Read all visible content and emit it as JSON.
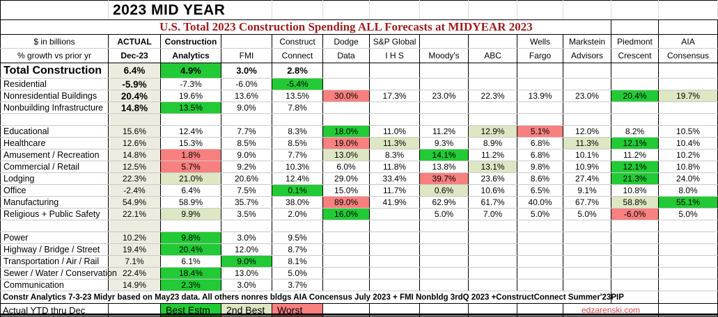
{
  "title": "2023 MID YEAR",
  "subtitle": "U.S. Total 2023 Construction Spending ALL Forecasts at MIDYEAR 2023",
  "corner": {
    "line1": "$ in billions",
    "line2": "% growth vs prior yr"
  },
  "colors": {
    "best": "#22cb35",
    "second": "#dde7c4",
    "worst": "#f8807f",
    "actual_column": "#eeece1",
    "subtitle_maroon": "#9c1c1c",
    "link_red": "#e04545"
  },
  "chart_data": {
    "type": "table",
    "title": "U.S. Total 2023 Construction Spending ALL Forecasts at MIDYEAR 2023",
    "units": "% growth vs prior yr, $ in billions",
    "highlight_meaning": {
      "best": "Best Estm",
      "second": "2nd Best",
      "worst": "Worst"
    },
    "columns": [
      {
        "line1": "ACTUAL",
        "line2": "Dec-23",
        "bold": true
      },
      {
        "line1": "Construction",
        "line2": "Analytics",
        "bold": true
      },
      {
        "line1": "",
        "line2": "FMI",
        "bold": false
      },
      {
        "line1": "Construct",
        "line2": "Connect",
        "bold": false
      },
      {
        "line1": "Dodge",
        "line2": "Data",
        "bold": false
      },
      {
        "line1": "S&P Global",
        "line2": "I H S",
        "bold": false
      },
      {
        "line1": "",
        "line2": "Moody's",
        "bold": false
      },
      {
        "line1": "",
        "line2": "ABC",
        "bold": false
      },
      {
        "line1": "Wells",
        "line2": "Fargo",
        "bold": false
      },
      {
        "line1": "Markstein",
        "line2": "Advisors",
        "bold": false
      },
      {
        "line1": "Piedmont",
        "line2": "Crescent",
        "bold": false
      },
      {
        "line1": "AIA",
        "line2": "Consensus",
        "bold": false
      }
    ],
    "rows": [
      {
        "label": "Total Construction",
        "em": true,
        "boldActual": true,
        "values": [
          "6.4%",
          "4.9%",
          "3.0%",
          "2.8%",
          "",
          "",
          "",
          "",
          "",
          "",
          "",
          ""
        ],
        "hl": [
          "",
          "best",
          "",
          "",
          "",
          "",
          "",
          "",
          "",
          "",
          "",
          ""
        ]
      },
      {
        "label": "Residential",
        "boldActual": true,
        "values": [
          "-5.9%",
          "-7.3%",
          "-6.0%",
          "-5.4%",
          "",
          "",
          "",
          "",
          "",
          "",
          "",
          ""
        ],
        "hl": [
          "",
          "",
          "",
          "best",
          "",
          "",
          "",
          "",
          "",
          "",
          "",
          ""
        ]
      },
      {
        "label": "Nonresidential Buildings",
        "boldActual": true,
        "values": [
          "20.4%",
          "19.6%",
          "13.6%",
          "13.5%",
          "30.0%",
          "17.3%",
          "23.0%",
          "22.3%",
          "13.9%",
          "23.0%",
          "20.4%",
          "19.7%"
        ],
        "hl": [
          "",
          "",
          "",
          "",
          "worst",
          "",
          "",
          "",
          "",
          "",
          "best",
          "second"
        ]
      },
      {
        "label": "Nonbuilding Infrastructure",
        "boldActual": true,
        "values": [
          "14.8%",
          "13.5%",
          "9.0%",
          "7.8%",
          "",
          "",
          "",
          "",
          "",
          "",
          "",
          ""
        ],
        "hl": [
          "",
          "best",
          "",
          "",
          "",
          "",
          "",
          "",
          "",
          "",
          "",
          ""
        ]
      },
      {
        "gap": true
      },
      {
        "label": "Educational",
        "values": [
          "15.6%",
          "12.4%",
          "7.7%",
          "8.3%",
          "18.0%",
          "11.0%",
          "11.2%",
          "12.9%",
          "5.1%",
          "12.0%",
          "8.2%",
          "10.5%"
        ],
        "hl": [
          "",
          "",
          "",
          "",
          "best",
          "",
          "",
          "second",
          "worst",
          "",
          "",
          ""
        ]
      },
      {
        "label": "Healthcare",
        "values": [
          "12.6%",
          "15.3%",
          "8.5%",
          "8.5%",
          "19.0%",
          "11.3%",
          "9.3%",
          "8.9%",
          "6.8%",
          "11.3%",
          "12.1%",
          "10.4%"
        ],
        "hl": [
          "",
          "",
          "",
          "",
          "worst",
          "second",
          "",
          "",
          "",
          "second",
          "best",
          ""
        ]
      },
      {
        "label": "Amusement / Recreation",
        "values": [
          "14.8%",
          "1.8%",
          "9.0%",
          "7.7%",
          "13.0%",
          "8.3%",
          "14.1%",
          "11.2%",
          "6.8%",
          "10.1%",
          "11.2%",
          "10.2%"
        ],
        "hl": [
          "",
          "worst",
          "",
          "",
          "second",
          "",
          "best",
          "",
          "",
          "",
          "",
          ""
        ]
      },
      {
        "label": "Commercial / Retail",
        "values": [
          "12.5%",
          "5.7%",
          "9.2%",
          "10.3%",
          "6.0%",
          "11.8%",
          "13.8%",
          "13.1%",
          "9.8%",
          "10.9%",
          "12.1%",
          "10.8%"
        ],
        "hl": [
          "",
          "worst",
          "",
          "",
          "",
          "",
          "",
          "second",
          "",
          "",
          "best",
          ""
        ]
      },
      {
        "label": "Lodging",
        "values": [
          "22.3%",
          "21.0%",
          "20.6%",
          "12.4%",
          "29.0%",
          "33.4%",
          "39.7%",
          "23.6%",
          "8.6%",
          "27.4%",
          "21.3%",
          "24.0%"
        ],
        "hl": [
          "",
          "second",
          "",
          "",
          "",
          "",
          "worst",
          "",
          "",
          "",
          "best",
          ""
        ]
      },
      {
        "label": "Office",
        "values": [
          "-2.4%",
          "6.4%",
          "7.5%",
          "0.1%",
          "15.0%",
          "11.7%",
          "0.6%",
          "10.6%",
          "6.5%",
          "9.1%",
          "10.8%",
          "8.0%"
        ],
        "hl": [
          "",
          "",
          "",
          "best",
          "",
          "",
          "second",
          "",
          "",
          "",
          "",
          ""
        ]
      },
      {
        "label": "Manufacturing",
        "values": [
          "54.9%",
          "58.9%",
          "35.7%",
          "38.0%",
          "89.0%",
          "41.9%",
          "62.9%",
          "61.7%",
          "40.0%",
          "67.7%",
          "58.8%",
          "55.1%"
        ],
        "hl": [
          "",
          "",
          "",
          "",
          "worst",
          "",
          "",
          "",
          "",
          "",
          "second",
          "best"
        ]
      },
      {
        "label": "Religious + Public Safety",
        "values": [
          "22.1%",
          "9.9%",
          "3.5%",
          "2.0%",
          "16.0%",
          "",
          "5.0%",
          "7.0%",
          "5.0%",
          "5.0%",
          "-6.0%",
          "5.0%"
        ],
        "hl": [
          "",
          "second",
          "",
          "",
          "best",
          "",
          "",
          "",
          "",
          "",
          "worst",
          ""
        ]
      },
      {
        "gap": true
      },
      {
        "label": "Power",
        "values": [
          "10.2%",
          "9.8%",
          "3.0%",
          "9.5%",
          "",
          "",
          "",
          "",
          "",
          "",
          "",
          ""
        ],
        "hl": [
          "",
          "best",
          "",
          "",
          "",
          "",
          "",
          "",
          "",
          "",
          "",
          ""
        ]
      },
      {
        "label": "Highway / Bridge / Street",
        "values": [
          "19.4%",
          "20.4%",
          "12.0%",
          "8.7%",
          "",
          "",
          "",
          "",
          "",
          "",
          "",
          ""
        ],
        "hl": [
          "",
          "best",
          "",
          "",
          "",
          "",
          "",
          "",
          "",
          "",
          "",
          ""
        ]
      },
      {
        "label": "Transportation / Air / Rail",
        "values": [
          "7.1%",
          "6.1%",
          "9.0%",
          "8.1%",
          "",
          "",
          "",
          "",
          "",
          "",
          "",
          ""
        ],
        "hl": [
          "",
          "",
          "best",
          "",
          "",
          "",
          "",
          "",
          "",
          "",
          "",
          ""
        ]
      },
      {
        "label": "Sewer / Water / Conservation",
        "values": [
          "22.4%",
          "18.4%",
          "13.0%",
          "5.0%",
          "",
          "",
          "",
          "",
          "",
          "",
          "",
          ""
        ],
        "hl": [
          "",
          "best",
          "",
          "",
          "",
          "",
          "",
          "",
          "",
          "",
          "",
          ""
        ]
      },
      {
        "label": "Communication",
        "values": [
          "14.9%",
          "2.3%",
          "3.0%",
          "3.7%",
          "",
          "",
          "",
          "",
          "",
          "",
          "",
          ""
        ],
        "hl": [
          "",
          "best",
          "",
          "",
          "",
          "",
          "",
          "",
          "",
          "",
          "",
          ""
        ]
      }
    ]
  },
  "footer": {
    "note": "Constr Analytics 7-3-23 Midyr based on May23 data. All others nonres bldgs AIA Concensus July 2023 + FMI Nonbldg 3rdQ 2023 +ConstructConnect Summer'23PIP",
    "actual_label": "Actual YTD thru Dec",
    "legend": [
      {
        "label": "Best Estm",
        "type": "best"
      },
      {
        "label": "2nd Best",
        "type": "second"
      },
      {
        "label": "Worst",
        "type": "worst"
      }
    ],
    "site": "edzarenski.com"
  }
}
